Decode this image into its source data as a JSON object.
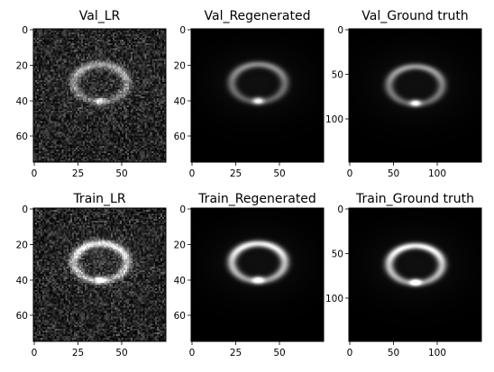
{
  "panels": [
    {
      "title": "Val_LR",
      "xticks": [
        "0",
        "25",
        "50"
      ],
      "yticks": [
        "0",
        "20",
        "40",
        "60"
      ],
      "noise": 0.42,
      "ring": 0.55,
      "blob": 0.6,
      "blur": 0
    },
    {
      "title": "Val_Regenerated",
      "xticks": [
        "0",
        "25",
        "50"
      ],
      "yticks": [
        "0",
        "20",
        "40",
        "60"
      ],
      "noise": 0.0,
      "ring": 0.5,
      "blob": 0.85,
      "blur": 1
    },
    {
      "title": "Val_Ground truth",
      "xticks": [
        "0",
        "50",
        "100"
      ],
      "yticks": [
        "0",
        "50",
        "100"
      ],
      "noise": 0.0,
      "ring": 0.55,
      "blob": 0.85,
      "blur": 1
    },
    {
      "title": "Train_LR",
      "xticks": [
        "0",
        "25",
        "50"
      ],
      "yticks": [
        "0",
        "20",
        "40",
        "60"
      ],
      "noise": 0.42,
      "ring": 0.85,
      "blob": 0.9,
      "blur": 0
    },
    {
      "title": "Train_Regenerated",
      "xticks": [
        "0",
        "25",
        "50"
      ],
      "yticks": [
        "0",
        "20",
        "40",
        "60"
      ],
      "noise": 0.0,
      "ring": 0.9,
      "blob": 1.0,
      "blur": 1
    },
    {
      "title": "Train_Ground truth",
      "xticks": [
        "0",
        "50",
        "100"
      ],
      "yticks": [
        "0",
        "50",
        "100"
      ],
      "noise": 0.0,
      "ring": 0.9,
      "blob": 1.0,
      "blur": 1
    }
  ]
}
